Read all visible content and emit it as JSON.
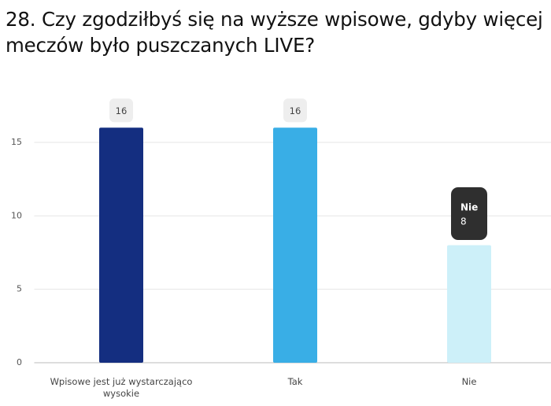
{
  "chart_data": {
    "type": "bar",
    "title": "28. Czy zgodziłbyś się na wyższe wpisowe, gdyby więcej meczów było puszczanych LIVE?",
    "categories": [
      "Wpisowe jest już wystarczająco wysokie",
      "Tak",
      "Nie"
    ],
    "values": [
      16,
      16,
      8
    ],
    "colors": [
      "#142e80",
      "#39aee6",
      "#cdf0f9"
    ],
    "ylim": [
      0,
      16
    ],
    "yticks": [
      0,
      5,
      10,
      15
    ],
    "grid": true,
    "tooltip": {
      "category": "Nie",
      "value": 8
    }
  }
}
